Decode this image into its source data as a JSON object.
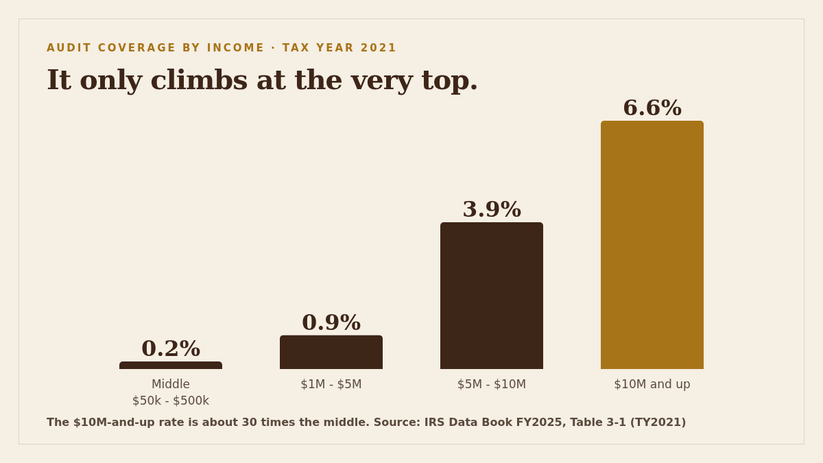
{
  "chart_data": {
    "type": "bar",
    "title": "It only climbs at the very top.",
    "subtitle": "AUDIT COVERAGE BY INCOME · TAX YEAR 2021",
    "categories": [
      "Middle\n$50k - $500k",
      "$1M - $5M",
      "$5M - $10M",
      "$10M and up"
    ],
    "values": [
      0.2,
      0.9,
      3.9,
      6.6
    ],
    "colors": [
      "#3d2518",
      "#3d2518",
      "#3d2518",
      "#a87418"
    ],
    "value_labels": [
      "0.2%",
      "0.9%",
      "3.9%",
      "6.6%"
    ],
    "grid": false,
    "legend": false,
    "annotations": [
      "The $10M-and-up rate is about 30 times the middle. Source: IRS Data Book FY2025, Table 3-1 (TY2021)"
    ]
  }
}
